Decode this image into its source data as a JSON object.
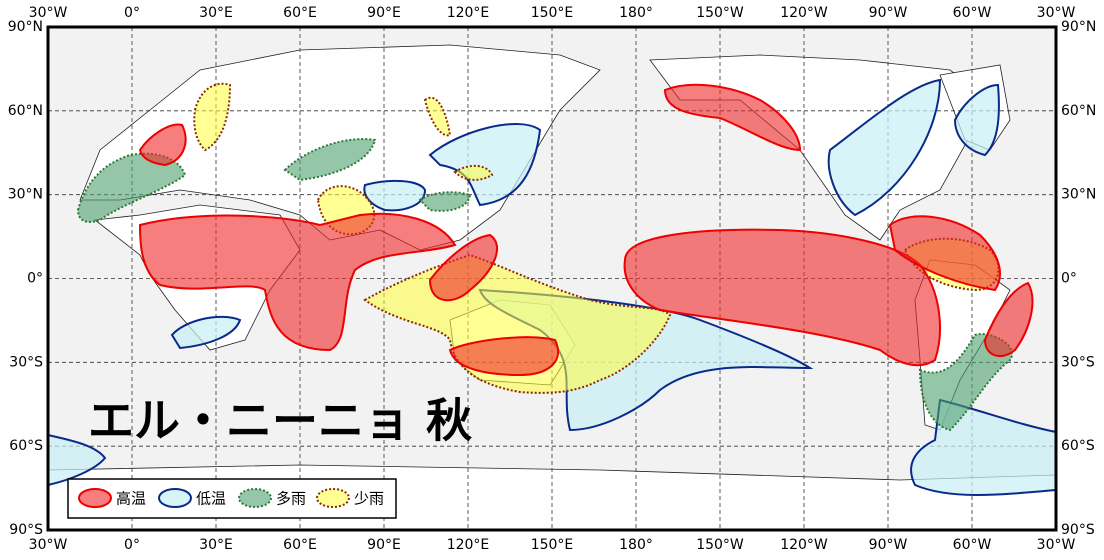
{
  "map": {
    "title": "エル・ニーニョ 秋",
    "x_labels": [
      "30°W",
      "0°",
      "30°E",
      "60°E",
      "90°E",
      "120°E",
      "150°E",
      "180°",
      "150°W",
      "120°W",
      "90°W",
      "60°W",
      "30°W"
    ],
    "y_labels": [
      "90°N",
      "60°N",
      "30°N",
      "0°",
      "30°S",
      "60°S",
      "90°S"
    ],
    "legend": [
      {
        "label": "高温"
      },
      {
        "label": "低温"
      },
      {
        "label": "多雨"
      },
      {
        "label": "少雨"
      }
    ]
  }
}
